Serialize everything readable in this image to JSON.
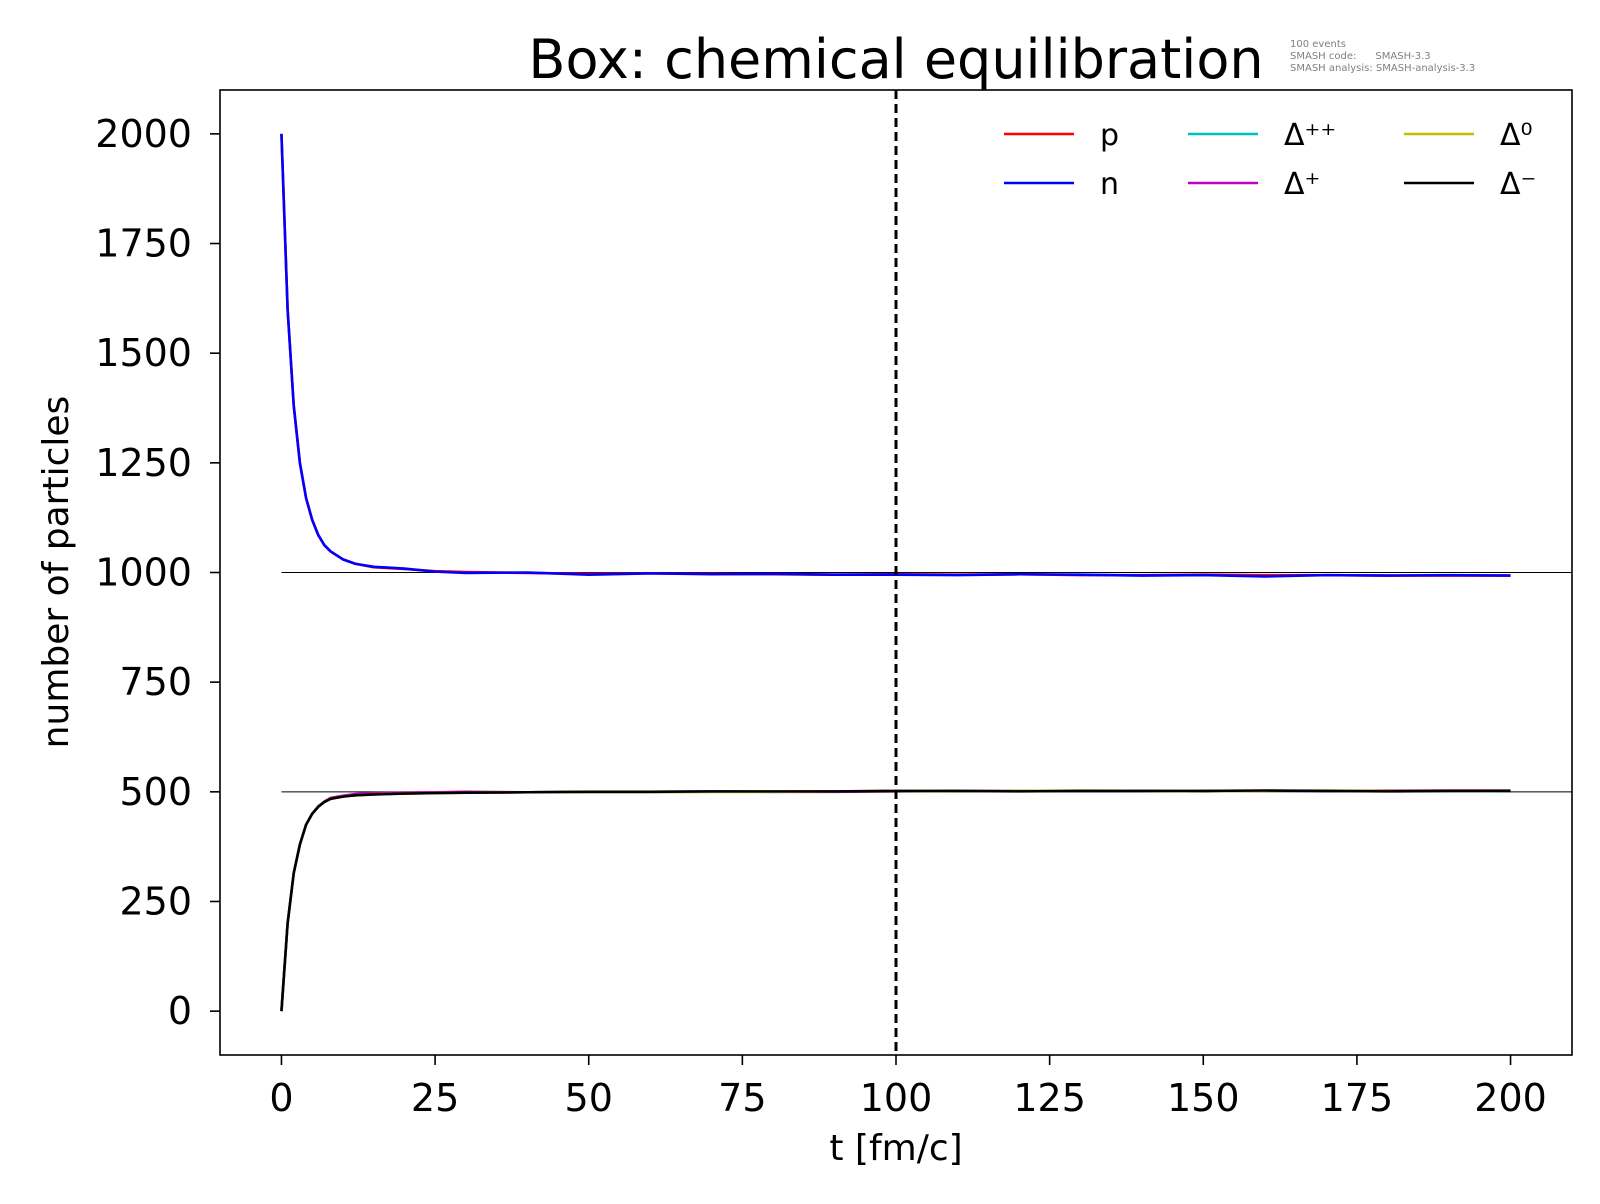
{
  "chart_data": {
    "type": "line",
    "title": "Box: chemical equilibration",
    "xlabel": "t [fm/c]",
    "ylabel": "number of particles",
    "xlim": [
      -10,
      210
    ],
    "ylim": [
      -100,
      2100
    ],
    "x_ticks": [
      0,
      25,
      50,
      75,
      100,
      125,
      150,
      175,
      200
    ],
    "x_tick_labels": [
      "0",
      "25",
      "50",
      "75",
      "100",
      "125",
      "150",
      "175",
      "200"
    ],
    "y_ticks": [
      0,
      250,
      500,
      750,
      1000,
      1250,
      1500,
      1750,
      2000
    ],
    "y_tick_labels": [
      "0",
      "250",
      "500",
      "750",
      "1000",
      "1250",
      "1500",
      "1750",
      "2000"
    ],
    "grid": false,
    "legend_position": "top-right",
    "legend_columns": 3,
    "annotations": {
      "meta_lines": [
        "100 events",
        "SMASH code:      SMASH-3.3",
        "SMASH analysis: SMASH-analysis-3.3"
      ]
    },
    "vertical_line": {
      "x": 100,
      "style": "dashed",
      "color": "#000000"
    },
    "horizontal_reference_lines": [
      {
        "y": 1000,
        "color": "#000000"
      },
      {
        "y": 500,
        "color": "#000000"
      }
    ],
    "x": [
      0,
      1,
      2,
      3,
      4,
      5,
      6,
      7,
      8,
      10,
      12,
      15,
      20,
      25,
      30,
      40,
      50,
      60,
      70,
      80,
      90,
      100,
      110,
      120,
      130,
      140,
      150,
      160,
      170,
      180,
      190,
      200
    ],
    "series": [
      {
        "name": "p",
        "color": "#ff0000",
        "values": [
          2000,
          1600,
          1380,
          1250,
          1170,
          1120,
          1085,
          1062,
          1048,
          1030,
          1020,
          1012,
          1008,
          1003,
          1001,
          999,
          997,
          998,
          997,
          996,
          995,
          996,
          995,
          996,
          994,
          994,
          995,
          994,
          994,
          993,
          993,
          993
        ]
      },
      {
        "name": "n",
        "color": "#0000ff",
        "values": [
          2000,
          1600,
          1380,
          1250,
          1170,
          1120,
          1085,
          1062,
          1048,
          1030,
          1020,
          1013,
          1009,
          1002,
          999,
          1000,
          995,
          998,
          996,
          997,
          995,
          995,
          994,
          996,
          995,
          993,
          994,
          991,
          994,
          993,
          994,
          993
        ]
      },
      {
        "name": "Δ⁺⁺",
        "color": "#00bfbf",
        "values": [
          0,
          200,
          315,
          380,
          425,
          450,
          467,
          478,
          485,
          490,
          494,
          496,
          497,
          498,
          499,
          499,
          500,
          500,
          500,
          500,
          501,
          501,
          501,
          502,
          501,
          501,
          502,
          502,
          501,
          502,
          502,
          501
        ]
      },
      {
        "name": "Δ⁺",
        "color": "#bf00bf",
        "values": [
          0,
          200,
          315,
          380,
          425,
          450,
          467,
          478,
          486,
          491,
          495,
          497,
          498,
          499,
          500,
          499,
          500,
          500,
          501,
          500,
          500,
          501,
          502,
          502,
          502,
          502,
          501,
          502,
          502,
          503,
          503,
          503
        ]
      },
      {
        "name": "Δ⁰",
        "color": "#bfbf00",
        "values": [
          0,
          200,
          315,
          380,
          425,
          450,
          466,
          477,
          484,
          489,
          492,
          494,
          496,
          497,
          498,
          499,
          499,
          499,
          500,
          500,
          501,
          502,
          501,
          502,
          503,
          502,
          501,
          502,
          503,
          502,
          502,
          502
        ]
      },
      {
        "name": "Δ⁻",
        "color": "#000000",
        "values": [
          0,
          200,
          315,
          380,
          425,
          450,
          466,
          477,
          484,
          489,
          492,
          494,
          496,
          497,
          498,
          499,
          500,
          500,
          501,
          501,
          501,
          502,
          502,
          501,
          502,
          502,
          502,
          503,
          502,
          501,
          502,
          502
        ]
      }
    ]
  }
}
